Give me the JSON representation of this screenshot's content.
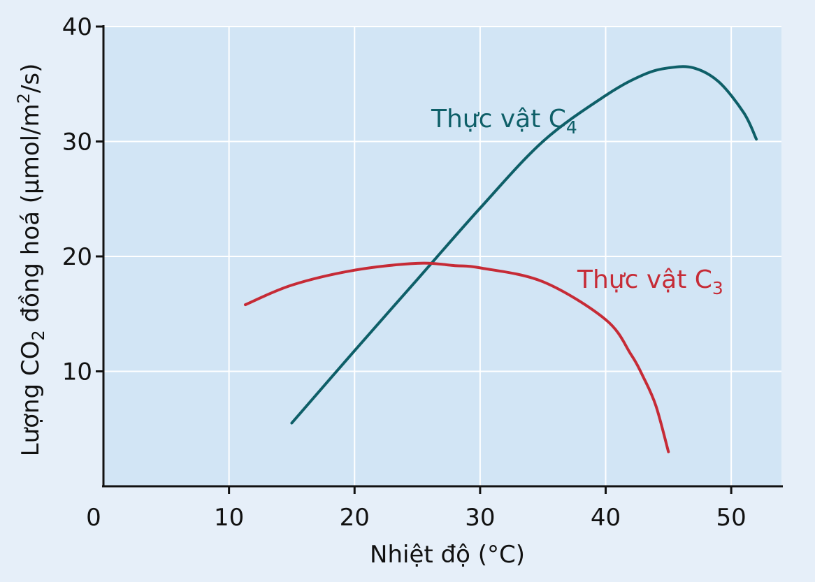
{
  "chart_data": {
    "type": "line",
    "title": "",
    "xlabel": "Nhiệt độ (°C)",
    "ylabel": {
      "prefix": "Lượng CO",
      "sub": "2",
      "middle": " đồng hoá (µmol/m",
      "sup": "2",
      "suffix": "/s)"
    },
    "xlim": [
      0,
      54
    ],
    "ylim": [
      0,
      40
    ],
    "xticks": [
      10,
      20,
      30,
      40,
      50
    ],
    "yticks": [
      10,
      20,
      30,
      40
    ],
    "origin_label": "0",
    "series": [
      {
        "name": "Thực vật C4",
        "label_main": "Thực vật C",
        "label_sub": "4",
        "color": "#0e5f68",
        "x": [
          15,
          20,
          25,
          30,
          35,
          40,
          43,
          45,
          47,
          49,
          51,
          52
        ],
        "y": [
          5.5,
          11.8,
          18.0,
          24.2,
          30.0,
          34.0,
          35.8,
          36.4,
          36.4,
          35.2,
          32.5,
          30.2
        ]
      },
      {
        "name": "Thực vật C3",
        "label_main": "Thực vật C",
        "label_sub": "3",
        "color": "#c62b36",
        "x": [
          11.3,
          15,
          20,
          25,
          28,
          30,
          35,
          40,
          42,
          43,
          44,
          45
        ],
        "y": [
          15.8,
          17.5,
          18.8,
          19.4,
          19.2,
          19.0,
          17.8,
          14.5,
          11.5,
          9.5,
          7.0,
          3.0
        ]
      }
    ]
  }
}
